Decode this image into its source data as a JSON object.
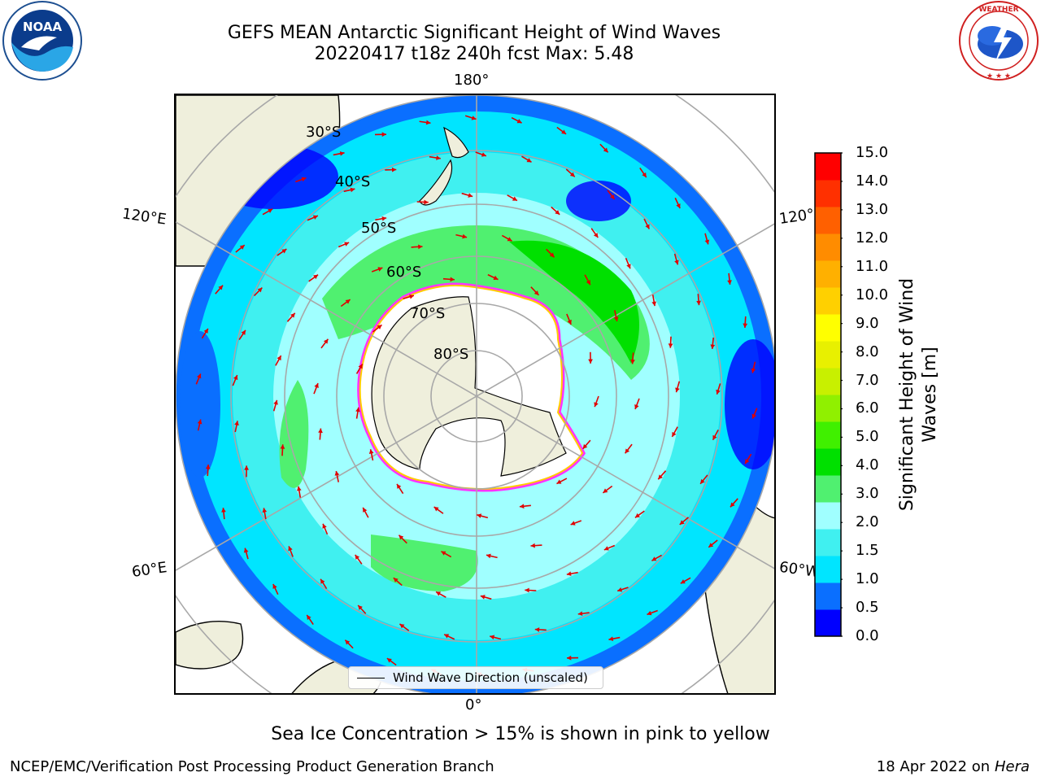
{
  "title_line1": "GEFS MEAN Antarctic Significant Height of Wind Waves",
  "title_line2": "20220417 t18z 240h fcst   Max: 5.48",
  "logos": {
    "left": "noaa-logo",
    "right": "nws-logo"
  },
  "map": {
    "projection": "south-polar-stereographic",
    "meridian_labels": {
      "top": "180°",
      "bottom": "0°",
      "upper_left": "120°E",
      "lower_left": "60°E",
      "upper_right": "120°",
      "lower_right": "60°W"
    },
    "parallel_labels": [
      "30°S",
      "40°S",
      "50°S",
      "60°S",
      "70°S",
      "80°S"
    ],
    "legend_label": "Wind Wave Direction (unscaled)"
  },
  "colorbar": {
    "label": "Significant Height of Wind Waves [m]",
    "ticks": [
      "15.0",
      "14.0",
      "13.0",
      "12.0",
      "11.0",
      "10.0",
      "9.0",
      "8.0",
      "7.0",
      "6.0",
      "5.0",
      "4.0",
      "3.0",
      "2.0",
      "1.5",
      "1.0",
      "0.5",
      "0.0"
    ],
    "colors": [
      "#0000ff",
      "#0a6fff",
      "#00e5ff",
      "#40f0f0",
      "#a0ffff",
      "#50f070",
      "#00e000",
      "#40f000",
      "#90f000",
      "#c8f000",
      "#e8f000",
      "#ffff00",
      "#ffd000",
      "#ffb000",
      "#ff8c00",
      "#ff6000",
      "#ff3000",
      "#ff0000"
    ]
  },
  "footer_note": "Sea Ice Concentration > 15% is shown in pink to yellow",
  "footer_left": "NCEP/EMC/Verification Post Processing Product Generation Branch",
  "footer_right_prefix": "18 Apr 2022 on ",
  "footer_right_host": "Hera"
}
